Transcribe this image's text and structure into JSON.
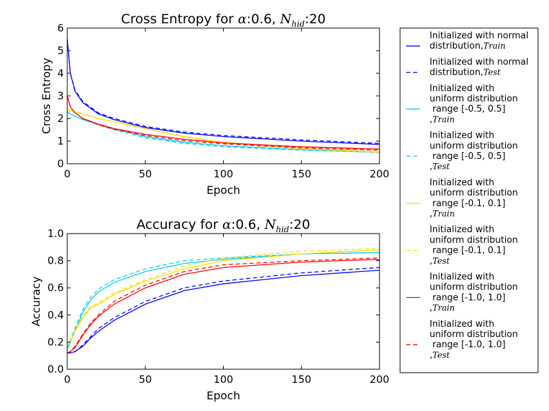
{
  "chart_data": [
    {
      "type": "line",
      "title": "Cross Entropy for α:0.6, N_hid:20",
      "title_parts": {
        "prefix": "Cross Entropy for ",
        "alpha": "α",
        "mid": ":0.6, ",
        "n": "N",
        "sub": "hid",
        "suffix": ":20"
      },
      "xlabel": "Epoch",
      "ylabel": "Cross Entropy",
      "xlim": [
        0,
        200
      ],
      "ylim": [
        0,
        6
      ],
      "xticks": [
        "0",
        "50",
        "100",
        "150",
        "200"
      ],
      "yticks": [
        "0",
        "1",
        "2",
        "3",
        "4",
        "5",
        "6"
      ],
      "x": [
        0,
        2,
        5,
        10,
        20,
        30,
        50,
        75,
        100,
        150,
        200
      ],
      "series": [
        {
          "name": "Initialized with normal distribution, Train",
          "color": "#0000ff",
          "dashed": false,
          "values": [
            5.5,
            4.0,
            3.2,
            2.7,
            2.2,
            1.95,
            1.6,
            1.35,
            1.2,
            1.0,
            0.85
          ]
        },
        {
          "name": "Initialized with normal distribution, Test",
          "color": "#0000ff",
          "dashed": true,
          "values": [
            5.5,
            4.0,
            3.25,
            2.75,
            2.25,
            2.0,
            1.65,
            1.4,
            1.25,
            1.05,
            0.9
          ]
        },
        {
          "name": "Initialized with uniform distribution range [-0.5, 0.5], Train",
          "color": "#00ccff",
          "dashed": false,
          "values": [
            2.3,
            2.2,
            2.1,
            1.95,
            1.75,
            1.55,
            1.2,
            0.95,
            0.8,
            0.62,
            0.5
          ]
        },
        {
          "name": "Initialized with uniform distribution range [-0.5, 0.5], Test",
          "color": "#00ccff",
          "dashed": true,
          "values": [
            2.3,
            2.2,
            2.1,
            1.95,
            1.72,
            1.5,
            1.15,
            0.9,
            0.75,
            0.6,
            0.5
          ]
        },
        {
          "name": "Initialized with uniform distribution range [-0.1, 0.1], Train",
          "color": "#ffdd00",
          "dashed": false,
          "values": [
            2.35,
            2.35,
            2.3,
            2.2,
            2.0,
            1.85,
            1.55,
            1.2,
            0.95,
            0.68,
            0.52
          ]
        },
        {
          "name": "Initialized with uniform distribution range [-0.1, 0.1], Test",
          "color": "#ffdd00",
          "dashed": true,
          "values": [
            2.35,
            2.35,
            2.3,
            2.2,
            2.0,
            1.85,
            1.55,
            1.18,
            0.92,
            0.65,
            0.5
          ]
        },
        {
          "name": "Initialized with uniform distribution range [-1.0, 1.0], Train",
          "color": "#ff0000",
          "dashed": false,
          "values": [
            3.0,
            2.5,
            2.25,
            2.0,
            1.75,
            1.55,
            1.3,
            1.08,
            0.92,
            0.75,
            0.65
          ]
        },
        {
          "name": "Initialized with uniform distribution range [-1.0, 1.0], Test",
          "color": "#ff0000",
          "dashed": true,
          "values": [
            3.0,
            2.5,
            2.25,
            2.0,
            1.72,
            1.52,
            1.25,
            1.02,
            0.88,
            0.7,
            0.6
          ]
        }
      ]
    },
    {
      "type": "line",
      "title": "Accuracy for α:0.6, N_hid:20",
      "title_parts": {
        "prefix": "Accuracy for ",
        "alpha": "α",
        "mid": ":0.6, ",
        "n": "N",
        "sub": "hid",
        "suffix": ":20"
      },
      "xlabel": "Epoch",
      "ylabel": "Accuracy",
      "xlim": [
        0,
        200
      ],
      "ylim": [
        0.0,
        1.0
      ],
      "xticks": [
        "0",
        "50",
        "100",
        "150",
        "200"
      ],
      "yticks": [
        "0.0",
        "0.2",
        "0.4",
        "0.6",
        "0.8",
        "1.0"
      ],
      "x": [
        0,
        2,
        5,
        10,
        15,
        20,
        30,
        50,
        75,
        100,
        150,
        200
      ],
      "series": [
        {
          "name": "Initialized with normal distribution, Train",
          "color": "#0000ff",
          "dashed": false,
          "values": [
            0.12,
            0.12,
            0.13,
            0.17,
            0.23,
            0.28,
            0.36,
            0.48,
            0.58,
            0.63,
            0.69,
            0.73
          ]
        },
        {
          "name": "Initialized with normal distribution, Test",
          "color": "#0000ff",
          "dashed": true,
          "values": [
            0.12,
            0.12,
            0.13,
            0.18,
            0.24,
            0.3,
            0.38,
            0.5,
            0.6,
            0.65,
            0.71,
            0.75
          ]
        },
        {
          "name": "Initialized with uniform distribution range [-0.5, 0.5], Train",
          "color": "#00ccff",
          "dashed": false,
          "values": [
            0.15,
            0.2,
            0.28,
            0.42,
            0.51,
            0.57,
            0.64,
            0.72,
            0.78,
            0.81,
            0.85,
            0.86
          ]
        },
        {
          "name": "Initialized with uniform distribution range [-0.5, 0.5], Test",
          "color": "#00ccff",
          "dashed": true,
          "values": [
            0.15,
            0.21,
            0.3,
            0.44,
            0.53,
            0.59,
            0.66,
            0.74,
            0.8,
            0.82,
            0.85,
            0.86
          ]
        },
        {
          "name": "Initialized with uniform distribution range [-0.1, 0.1], Train",
          "color": "#ffdd00",
          "dashed": false,
          "values": [
            0.18,
            0.2,
            0.28,
            0.38,
            0.45,
            0.48,
            0.55,
            0.65,
            0.74,
            0.8,
            0.85,
            0.88
          ]
        },
        {
          "name": "Initialized with uniform distribution range [-0.1, 0.1], Test",
          "color": "#ffdd00",
          "dashed": true,
          "values": [
            0.18,
            0.2,
            0.29,
            0.39,
            0.46,
            0.49,
            0.56,
            0.66,
            0.76,
            0.82,
            0.87,
            0.89
          ]
        },
        {
          "name": "Initialized with uniform distribution range [-1.0, 1.0], Train",
          "color": "#ff0000",
          "dashed": false,
          "values": [
            0.12,
            0.13,
            0.16,
            0.25,
            0.33,
            0.39,
            0.48,
            0.6,
            0.7,
            0.75,
            0.79,
            0.81
          ]
        },
        {
          "name": "Initialized with uniform distribution range [-1.0, 1.0], Test",
          "color": "#ff0000",
          "dashed": true,
          "values": [
            0.12,
            0.13,
            0.17,
            0.26,
            0.34,
            0.4,
            0.5,
            0.62,
            0.72,
            0.77,
            0.8,
            0.82
          ]
        }
      ]
    }
  ],
  "legend": {
    "placement": "right",
    "entries": [
      {
        "lines": [
          "Initialized with normal",
          "distribution,"
        ],
        "set": "Train",
        "color": "#0000ff",
        "dashed": false
      },
      {
        "lines": [
          "Initialized with normal",
          "distribution,"
        ],
        "set": "Test",
        "color": "#0000ff",
        "dashed": true
      },
      {
        "lines": [
          "Initialized with",
          "uniform distribution",
          " range [-0.5, 0.5]",
          ","
        ],
        "set": "Train",
        "color": "#00ccff",
        "dashed": false
      },
      {
        "lines": [
          "Initialized with",
          "uniform distribution",
          " range [-0.5, 0.5]",
          ","
        ],
        "set": "Test",
        "color": "#00ccff",
        "dashed": true
      },
      {
        "lines": [
          "Initialized with",
          "uniform distribution",
          " range [-0.1, 0.1]",
          ","
        ],
        "set": "Train",
        "color": "#ffdd00",
        "dashed": false
      },
      {
        "lines": [
          "Initialized with",
          "uniform distribution",
          " range [-0.1, 0.1]",
          ","
        ],
        "set": "Test",
        "color": "#ffdd00",
        "dashed": true
      },
      {
        "lines": [
          "Initialized with",
          "uniform distribution",
          " range [-1.0, 1.0]",
          ","
        ],
        "set": "Train",
        "color": "#ff0000",
        "dashed": false
      },
      {
        "lines": [
          "Initialized with",
          "uniform distribution",
          " range [-1.0, 1.0]",
          ","
        ],
        "set": "Test",
        "color": "#ff0000",
        "dashed": true
      }
    ]
  }
}
